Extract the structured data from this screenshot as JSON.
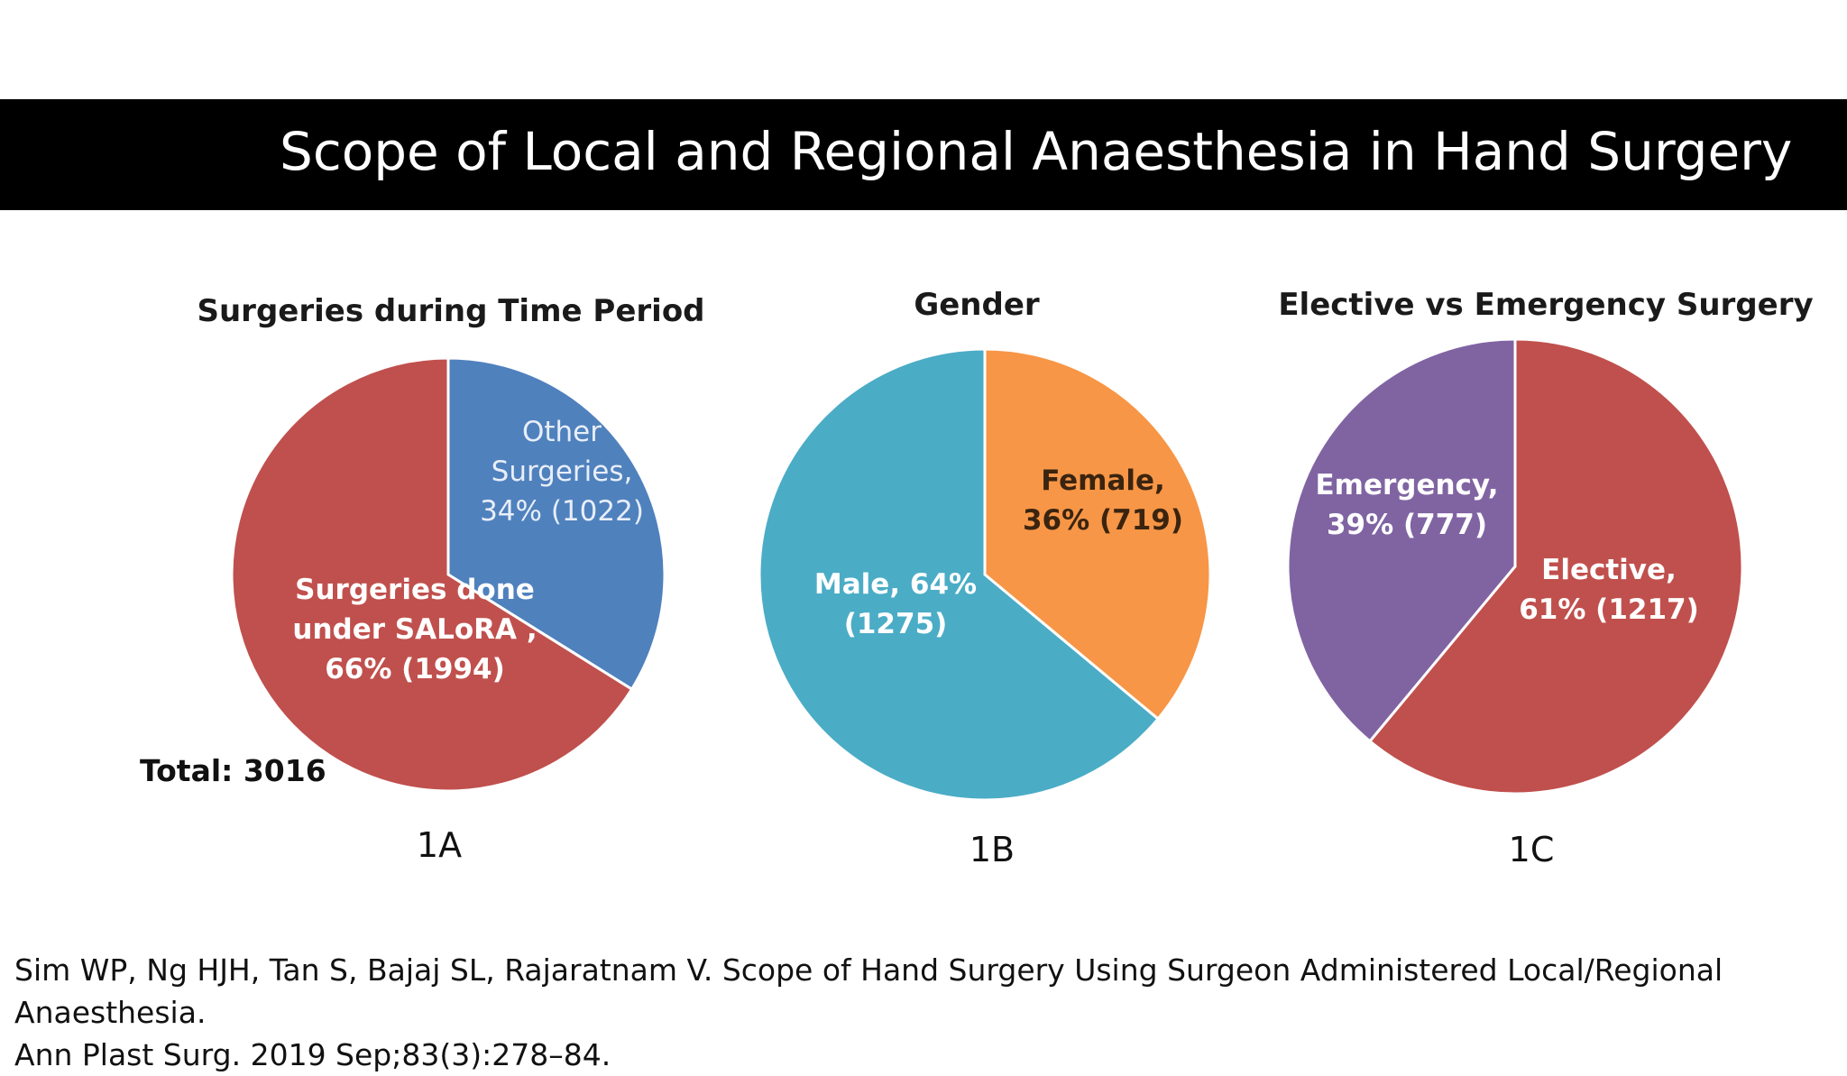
{
  "slide": {
    "title": "Scope of Local and Regional Anaesthesia in Hand Surgery",
    "citation_line1": "Sim WP, Ng HJH, Tan S, Bajaj SL, Rajaratnam V. Scope of Hand Surgery Using Surgeon Administered Local/Regional Anaesthesia.",
    "citation_line2": "Ann Plast Surg. 2019 Sep;83(3):278–84."
  },
  "chart_data": [
    {
      "type": "pie",
      "title": "Surgeries during Time Period",
      "figure_label": "1A",
      "total_label": "Total: 3016",
      "slices": [
        {
          "label_lines": [
            "Other",
            "Surgeries,",
            "34% (1022)"
          ],
          "value": 1022,
          "percent": 34,
          "color": "#4f81bd",
          "label_color": "#e8eef8",
          "label_weight": "normal"
        },
        {
          "label_lines": [
            "Surgeries done",
            "under SALoRA ,",
            "66% (1994)"
          ],
          "value": 1994,
          "percent": 66,
          "color": "#c0504d",
          "label_color": "#ffffff",
          "label_weight": "bold"
        }
      ]
    },
    {
      "type": "pie",
      "title": "Gender",
      "figure_label": "1B",
      "slices": [
        {
          "label_lines": [
            "Female,",
            "36% (719)"
          ],
          "value": 719,
          "percent": 36,
          "color": "#f79646",
          "label_color": "#3a2410",
          "label_weight": "bold"
        },
        {
          "label_lines": [
            "Male, 64%",
            "(1275)"
          ],
          "value": 1275,
          "percent": 64,
          "color": "#4bacc6",
          "label_color": "#ffffff",
          "label_weight": "bold"
        }
      ]
    },
    {
      "type": "pie",
      "title": "Elective vs Emergency Surgery",
      "figure_label": "1C",
      "slices": [
        {
          "label_lines": [
            "Elective,",
            "61% (1217)"
          ],
          "value": 1217,
          "percent": 61,
          "color": "#c0504d",
          "label_color": "#ffffff",
          "label_weight": "bold"
        },
        {
          "label_lines": [
            "Emergency,",
            "39% (777)"
          ],
          "value": 777,
          "percent": 39,
          "color": "#8064a2",
          "label_color": "#ffffff",
          "label_weight": "bold"
        }
      ]
    }
  ]
}
